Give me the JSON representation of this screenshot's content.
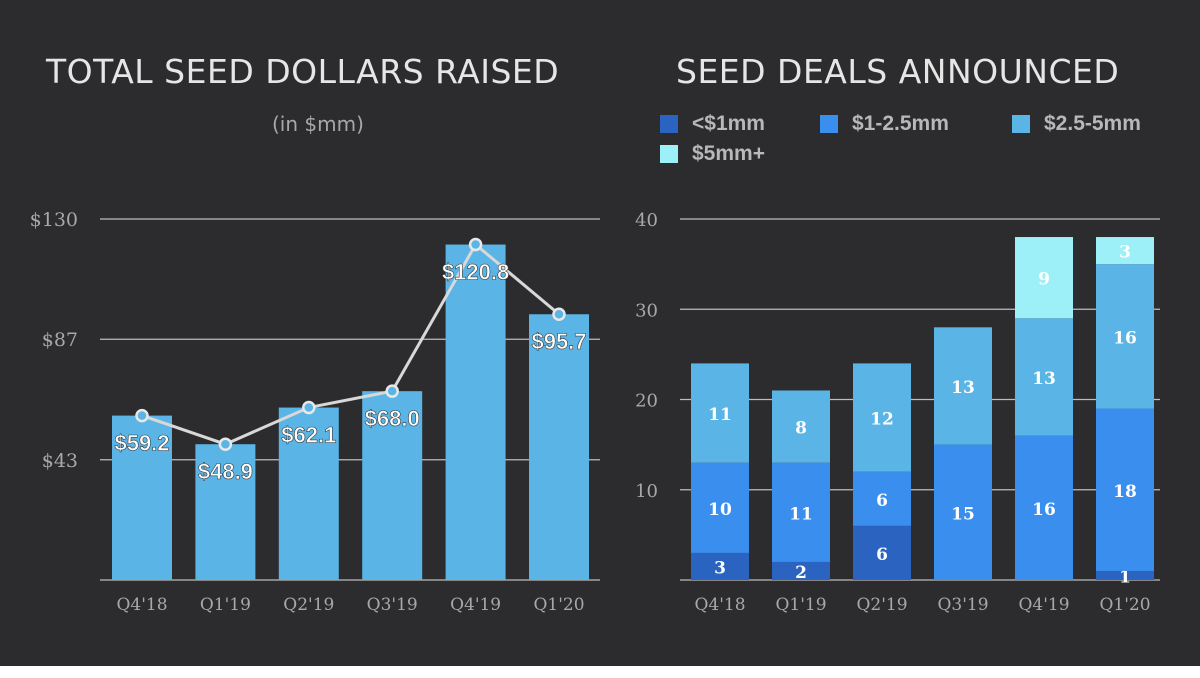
{
  "chart_data": [
    {
      "type": "bar",
      "title": "TOTAL SEED DOLLARS RAISED",
      "subtitle": "(in $mm)",
      "categories": [
        "Q4'18",
        "Q1'19",
        "Q2'19",
        "Q3'19",
        "Q4'19",
        "Q1'20"
      ],
      "values": [
        59.2,
        48.9,
        62.1,
        68.0,
        120.8,
        95.7
      ],
      "data_labels": [
        "$59.2",
        "$48.9",
        "$62.1",
        "$68.0",
        "$120.8",
        "$95.7"
      ],
      "overlay_line": true,
      "yticks": [
        "$43",
        "$87",
        "$130"
      ],
      "ytick_values": [
        43.3,
        86.7,
        130
      ],
      "ylim": [
        0,
        130
      ],
      "grid": true,
      "colors": {
        "bar": "#5ab4e6",
        "line": "#d8d8d8"
      }
    },
    {
      "type": "bar",
      "stacked": true,
      "title": "SEED DEALS ANNOUNCED",
      "categories": [
        "Q4'18",
        "Q1'19",
        "Q2'19",
        "Q3'19",
        "Q4'19",
        "Q1'20"
      ],
      "series": [
        {
          "name": "<$1mm",
          "values": [
            3,
            2,
            6,
            0,
            0,
            1
          ],
          "color": "#2a64c0"
        },
        {
          "name": "$1-2.5mm",
          "values": [
            10,
            11,
            6,
            15,
            16,
            18
          ],
          "color": "#3a8eee"
        },
        {
          "name": "$2.5-5mm",
          "values": [
            11,
            8,
            12,
            13,
            13,
            16
          ],
          "color": "#5ab4e6"
        },
        {
          "name": "$5mm+",
          "values": [
            0,
            0,
            0,
            0,
            9,
            3
          ],
          "color": "#9ef0f8"
        }
      ],
      "yticks": [
        "10",
        "20",
        "30",
        "40"
      ],
      "ytick_values": [
        10,
        20,
        30,
        40
      ],
      "ylim": [
        0,
        40
      ],
      "grid": true,
      "legend": "top"
    }
  ]
}
